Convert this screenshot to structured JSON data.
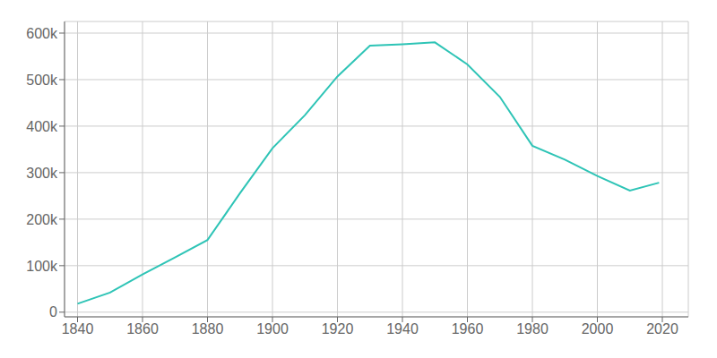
{
  "chart_data": {
    "type": "line",
    "x": [
      1840,
      1850,
      1860,
      1870,
      1880,
      1890,
      1900,
      1910,
      1920,
      1930,
      1940,
      1950,
      1960,
      1970,
      1980,
      1990,
      2000,
      2010,
      2019
    ],
    "values": [
      18213,
      42261,
      81129,
      117714,
      155134,
      255664,
      352387,
      423715,
      506775,
      573076,
      575901,
      580132,
      532759,
      462768,
      357870,
      328123,
      292648,
      261310,
      278349
    ],
    "color": "#2ec4b6",
    "xlim": [
      1836,
      2028
    ],
    "ylim": [
      -10000,
      625000
    ],
    "xticks": [
      1840,
      1860,
      1880,
      1900,
      1920,
      1940,
      1960,
      1980,
      2000,
      2020
    ],
    "yticks": [
      0,
      {
        "value": 100000,
        "label": "100k"
      },
      {
        "value": 200000,
        "label": "200k"
      },
      {
        "value": 300000,
        "label": "300k"
      },
      {
        "value": 400000,
        "label": "400k"
      },
      {
        "value": 500000,
        "label": "500k"
      },
      {
        "value": 600000,
        "label": "600k"
      }
    ],
    "grid": true
  }
}
